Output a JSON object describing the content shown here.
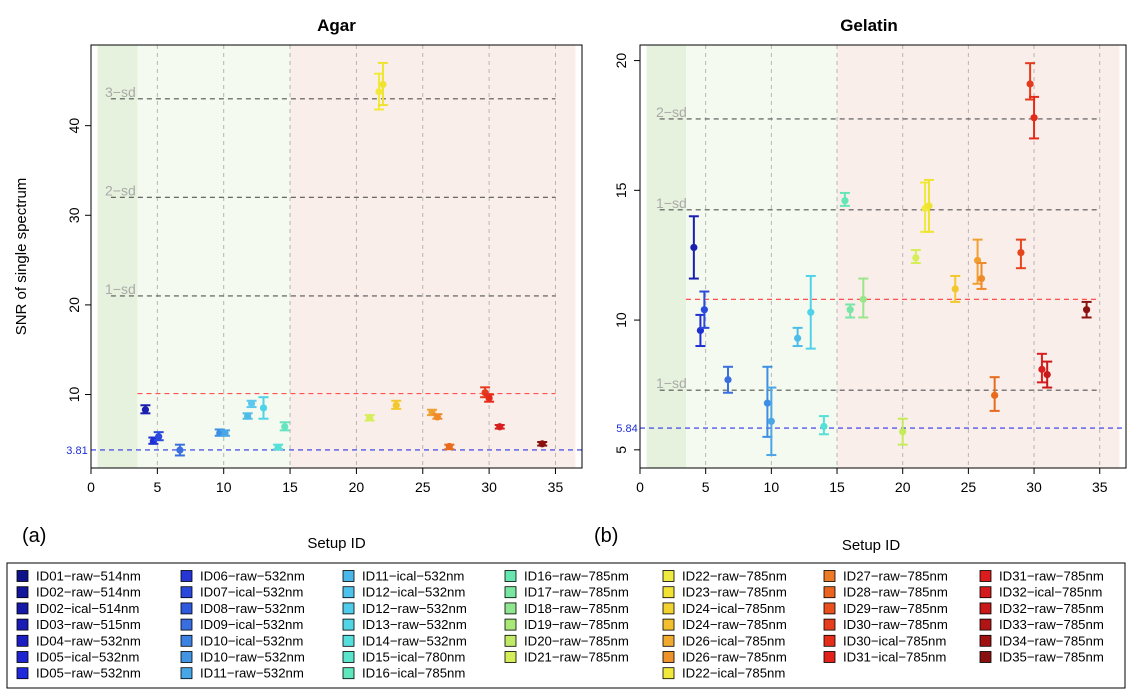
{
  "chart_data": [
    {
      "type": "scatter",
      "title": "Agar",
      "xlabel": "Setup ID",
      "ylabel": "SNR of single spectrum",
      "panel_label": "(a)",
      "xlim": [
        0,
        37
      ],
      "ylim": [
        1.8,
        49
      ],
      "x_ticks": [
        0,
        5,
        10,
        15,
        20,
        25,
        30,
        35
      ],
      "y_ticks": [
        10,
        20,
        30,
        40
      ],
      "x_tick_labels": [
        "0",
        "5",
        "10",
        "15",
        "20",
        "25",
        "30",
        "35"
      ],
      "y_tick_labels": [
        "10",
        "20",
        "30",
        "40"
      ],
      "shaded_regions": [
        {
          "from": 0.5,
          "to": 3.5,
          "color": "#e6f2dd"
        },
        {
          "from": 3.5,
          "to": 15,
          "color": "#f4faef"
        },
        {
          "from": 15,
          "to": 36.5,
          "color": "#faeeeb"
        }
      ],
      "hlines": [
        {
          "y": 43,
          "label": "3−sd",
          "color": "#555555"
        },
        {
          "y": 32,
          "label": "2−sd",
          "color": "#555555"
        },
        {
          "y": 21,
          "label": "1−sd",
          "color": "#555555"
        },
        {
          "y": 10.1,
          "label": "",
          "color": "#ff3b3b",
          "from": 3.5
        },
        {
          "y": 3.81,
          "label": "",
          "color": "#2e35e6"
        }
      ],
      "baseline_label": "3.81",
      "points": [
        {
          "x": 4.1,
          "y": 8.3,
          "lo": 7.9,
          "hi": 8.8,
          "color": "#1b1fb0"
        },
        {
          "x": 4.7,
          "y": 4.8,
          "lo": 4.5,
          "hi": 5.2,
          "color": "#1f2fd4"
        },
        {
          "x": 5.1,
          "y": 5.3,
          "lo": 4.9,
          "hi": 5.8,
          "color": "#2a4bdd"
        },
        {
          "x": 6.7,
          "y": 3.8,
          "lo": 3.2,
          "hi": 4.4,
          "color": "#3b6fe0"
        },
        {
          "x": 9.7,
          "y": 5.7,
          "lo": 5.4,
          "hi": 6.1,
          "color": "#3d8fe3"
        },
        {
          "x": 10.1,
          "y": 5.7,
          "lo": 5.4,
          "hi": 6.0,
          "color": "#4ba6e6"
        },
        {
          "x": 11.8,
          "y": 7.6,
          "lo": 7.3,
          "hi": 7.9,
          "color": "#4dbce8"
        },
        {
          "x": 12.1,
          "y": 9.0,
          "lo": 8.6,
          "hi": 9.3,
          "color": "#5cc9ec"
        },
        {
          "x": 13.0,
          "y": 8.5,
          "lo": 7.3,
          "hi": 9.7,
          "color": "#4fd3e8"
        },
        {
          "x": 14.1,
          "y": 4.1,
          "lo": 3.9,
          "hi": 4.4,
          "color": "#55e0d8"
        },
        {
          "x": 14.6,
          "y": 6.4,
          "lo": 6.0,
          "hi": 6.9,
          "color": "#66e4c0"
        },
        {
          "x": 21.0,
          "y": 7.4,
          "lo": 7.1,
          "hi": 7.7,
          "color": "#d6ee5a"
        },
        {
          "x": 21.7,
          "y": 43.8,
          "lo": 41.8,
          "hi": 45.8,
          "color": "#f2ea3a"
        },
        {
          "x": 22.0,
          "y": 44.6,
          "lo": 42.3,
          "hi": 47.0,
          "color": "#efe332"
        },
        {
          "x": 23.0,
          "y": 8.8,
          "lo": 8.4,
          "hi": 9.3,
          "color": "#f2c82e"
        },
        {
          "x": 25.7,
          "y": 8.0,
          "lo": 7.7,
          "hi": 8.3,
          "color": "#f0a030"
        },
        {
          "x": 26.1,
          "y": 7.5,
          "lo": 7.3,
          "hi": 7.8,
          "color": "#ee8a2a"
        },
        {
          "x": 27.0,
          "y": 4.2,
          "lo": 3.9,
          "hi": 4.4,
          "color": "#ea6a1c"
        },
        {
          "x": 29.7,
          "y": 10.2,
          "lo": 9.7,
          "hi": 10.8,
          "color": "#e63a1d"
        },
        {
          "x": 30.0,
          "y": 9.6,
          "lo": 9.2,
          "hi": 10.0,
          "color": "#e52a1a"
        },
        {
          "x": 30.8,
          "y": 6.4,
          "lo": 6.2,
          "hi": 6.6,
          "color": "#d81e1e"
        },
        {
          "x": 34.0,
          "y": 4.5,
          "lo": 4.3,
          "hi": 4.7,
          "color": "#8b1010"
        }
      ]
    },
    {
      "type": "scatter",
      "title": "Gelatin",
      "xlabel": "Setup ID",
      "ylabel": "",
      "panel_label": "(b)",
      "xlim": [
        0,
        37
      ],
      "ylim": [
        4.3,
        20.6
      ],
      "x_ticks": [
        0,
        5,
        10,
        15,
        20,
        25,
        30,
        35
      ],
      "y_ticks": [
        5,
        10,
        15,
        20
      ],
      "x_tick_labels": [
        "0",
        "5",
        "10",
        "15",
        "20",
        "25",
        "30",
        "35"
      ],
      "y_tick_labels": [
        "5",
        "10",
        "15",
        "20"
      ],
      "shaded_regions": [
        {
          "from": 0.5,
          "to": 3.5,
          "color": "#e6f2dd"
        },
        {
          "from": 3.5,
          "to": 15,
          "color": "#f4faef"
        },
        {
          "from": 15,
          "to": 36.5,
          "color": "#faeeeb"
        }
      ],
      "hlines": [
        {
          "y": 17.75,
          "label": "2−sd",
          "color": "#555555"
        },
        {
          "y": 14.25,
          "label": "1−sd",
          "color": "#555555"
        },
        {
          "y": 10.8,
          "label": "",
          "color": "#ff3b3b",
          "from": 3.5
        },
        {
          "y": 7.3,
          "label": "1−sd",
          "color": "#555555"
        },
        {
          "y": 5.84,
          "label": "",
          "color": "#2e35e6"
        }
      ],
      "baseline_label": "5.84",
      "points": [
        {
          "x": 4.1,
          "y": 12.8,
          "lo": 11.6,
          "hi": 14.0,
          "color": "#1b1fb0"
        },
        {
          "x": 4.6,
          "y": 9.6,
          "lo": 9.0,
          "hi": 10.2,
          "color": "#1f2fd4"
        },
        {
          "x": 4.9,
          "y": 10.4,
          "lo": 9.7,
          "hi": 11.1,
          "color": "#2a4bdd"
        },
        {
          "x": 6.7,
          "y": 7.7,
          "lo": 7.2,
          "hi": 8.2,
          "color": "#3b6fe0"
        },
        {
          "x": 9.7,
          "y": 6.8,
          "lo": 5.5,
          "hi": 8.2,
          "color": "#3d8fe3"
        },
        {
          "x": 10.0,
          "y": 6.1,
          "lo": 4.8,
          "hi": 7.4,
          "color": "#4ba6e6"
        },
        {
          "x": 12.0,
          "y": 9.3,
          "lo": 9.0,
          "hi": 9.7,
          "color": "#4dbce8"
        },
        {
          "x": 13.0,
          "y": 10.3,
          "lo": 8.9,
          "hi": 11.7,
          "color": "#4fd3e8"
        },
        {
          "x": 14.0,
          "y": 5.9,
          "lo": 5.6,
          "hi": 6.3,
          "color": "#55e0d8"
        },
        {
          "x": 15.6,
          "y": 14.6,
          "lo": 14.4,
          "hi": 14.9,
          "color": "#66e6b8"
        },
        {
          "x": 16.0,
          "y": 10.4,
          "lo": 10.1,
          "hi": 10.6,
          "color": "#78e6a6"
        },
        {
          "x": 17.0,
          "y": 10.8,
          "lo": 10.1,
          "hi": 11.6,
          "color": "#9ae68a"
        },
        {
          "x": 20.0,
          "y": 5.7,
          "lo": 5.2,
          "hi": 6.2,
          "color": "#c4ec5a"
        },
        {
          "x": 21.0,
          "y": 12.4,
          "lo": 12.2,
          "hi": 12.7,
          "color": "#d6ee5a"
        },
        {
          "x": 21.7,
          "y": 14.3,
          "lo": 13.4,
          "hi": 15.3,
          "color": "#f2ea3a"
        },
        {
          "x": 22.0,
          "y": 14.4,
          "lo": 13.4,
          "hi": 15.4,
          "color": "#efe332"
        },
        {
          "x": 24.0,
          "y": 11.2,
          "lo": 10.7,
          "hi": 11.7,
          "color": "#f2c82e"
        },
        {
          "x": 25.7,
          "y": 12.3,
          "lo": 11.4,
          "hi": 13.1,
          "color": "#f0a030"
        },
        {
          "x": 26.0,
          "y": 11.6,
          "lo": 11.2,
          "hi": 12.2,
          "color": "#ee8a2a"
        },
        {
          "x": 27.0,
          "y": 7.1,
          "lo": 6.5,
          "hi": 7.8,
          "color": "#ea6a1c"
        },
        {
          "x": 29.0,
          "y": 12.6,
          "lo": 12.0,
          "hi": 13.1,
          "color": "#e6451d"
        },
        {
          "x": 29.7,
          "y": 19.1,
          "lo": 18.5,
          "hi": 19.9,
          "color": "#e63a1d"
        },
        {
          "x": 30.0,
          "y": 17.8,
          "lo": 17.0,
          "hi": 18.6,
          "color": "#e52a1a"
        },
        {
          "x": 30.6,
          "y": 8.1,
          "lo": 7.6,
          "hi": 8.7,
          "color": "#d81e1e"
        },
        {
          "x": 31.0,
          "y": 7.9,
          "lo": 7.4,
          "hi": 8.4,
          "color": "#c81818"
        },
        {
          "x": 34.0,
          "y": 10.4,
          "lo": 10.1,
          "hi": 10.7,
          "color": "#8b1010"
        }
      ]
    }
  ],
  "legend": {
    "columns": [
      [
        {
          "label": "ID01−raw−514nm",
          "color": "#0f138a"
        },
        {
          "label": "ID02−raw−514nm",
          "color": "#12169a"
        },
        {
          "label": "ID02−ical−514nm",
          "color": "#1519a8"
        },
        {
          "label": "ID03−raw−515nm",
          "color": "#181cb4"
        },
        {
          "label": "ID04−raw−532nm",
          "color": "#1b1fc2"
        },
        {
          "label": "ID05−ical−532nm",
          "color": "#1e24d0"
        },
        {
          "label": "ID05−raw−532nm",
          "color": "#2129dc"
        }
      ],
      [
        {
          "label": "ID06−raw−532nm",
          "color": "#2535d6"
        },
        {
          "label": "ID07−ical−532nm",
          "color": "#2a48dc"
        },
        {
          "label": "ID08−raw−532nm",
          "color": "#305ade"
        },
        {
          "label": "ID09−ical−532nm",
          "color": "#386ee0"
        },
        {
          "label": "ID10−ical−532nm",
          "color": "#3d82e2"
        },
        {
          "label": "ID10−raw−532nm",
          "color": "#4395e4"
        },
        {
          "label": "ID11−raw−532nm",
          "color": "#47a6e6"
        }
      ],
      [
        {
          "label": "ID11−ical−532nm",
          "color": "#4bb6e8"
        },
        {
          "label": "ID12−ical−532nm",
          "color": "#4dc2ea"
        },
        {
          "label": "ID12−raw−532nm",
          "color": "#50ccea"
        },
        {
          "label": "ID13−raw−532nm",
          "color": "#52d6e6"
        },
        {
          "label": "ID14−raw−532nm",
          "color": "#55dedc"
        },
        {
          "label": "ID15−ical−780nm",
          "color": "#5ae4cc"
        },
        {
          "label": "ID16−ical−785nm",
          "color": "#60e6bc"
        }
      ],
      [
        {
          "label": "ID16−raw−785nm",
          "color": "#68e6b0"
        },
        {
          "label": "ID17−raw−785nm",
          "color": "#78e6a0"
        },
        {
          "label": "ID18−raw−785nm",
          "color": "#90e68e"
        },
        {
          "label": "ID19−raw−785nm",
          "color": "#a8e878"
        },
        {
          "label": "ID20−raw−785nm",
          "color": "#c0ea66"
        },
        {
          "label": "ID21−raw−785nm",
          "color": "#d6ec58"
        }
      ],
      [
        {
          "label": "ID22−raw−785nm",
          "color": "#eeea40"
        },
        {
          "label": "ID23−raw−785nm",
          "color": "#f2e236"
        },
        {
          "label": "ID24−ical−785nm",
          "color": "#f2d230"
        },
        {
          "label": "ID24−raw−785nm",
          "color": "#f2c02e"
        },
        {
          "label": "ID26−ical−785nm",
          "color": "#f0aa2e"
        },
        {
          "label": "ID26−raw−785nm",
          "color": "#ee922c"
        },
        {
          "label": "ID22−ical−785nm",
          "color": "#f0e83a"
        }
      ],
      [
        {
          "label": "ID27−raw−785nm",
          "color": "#ec7a26"
        },
        {
          "label": "ID28−raw−785nm",
          "color": "#ea6420"
        },
        {
          "label": "ID29−raw−785nm",
          "color": "#e8501e"
        },
        {
          "label": "ID30−raw−785nm",
          "color": "#e63e1c"
        },
        {
          "label": "ID30−ical−785nm",
          "color": "#e42e1a"
        },
        {
          "label": "ID31−ical−785nm",
          "color": "#e2221a"
        }
      ],
      [
        {
          "label": "ID31−raw−785nm",
          "color": "#dc1c1c"
        },
        {
          "label": "ID32−ical−785nm",
          "color": "#d41a1a"
        },
        {
          "label": "ID32−raw−785nm",
          "color": "#c81818"
        },
        {
          "label": "ID33−raw−785nm",
          "color": "#b01414"
        },
        {
          "label": "ID34−raw−785nm",
          "color": "#a01212"
        },
        {
          "label": "ID35−raw−785nm",
          "color": "#8a1010"
        }
      ]
    ]
  }
}
